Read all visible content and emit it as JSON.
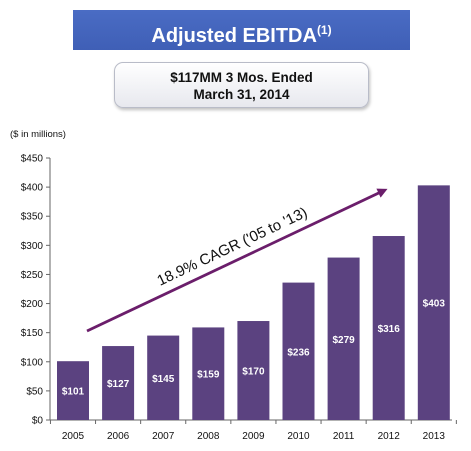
{
  "header": {
    "title": "Adjusted EBITDA",
    "title_footnote": "(1)"
  },
  "callout": {
    "line1": "$117MM 3 Mos. Ended",
    "line2": "March 31, 2014"
  },
  "colors": {
    "bar": "#5b4280",
    "axis": "#666666",
    "arrow": "#6b1e6b",
    "banner": "#4466bb"
  },
  "chart_data": {
    "type": "bar",
    "categories": [
      "2005",
      "2006",
      "2007",
      "2008",
      "2009",
      "2010",
      "2011",
      "2012",
      "2013"
    ],
    "values": [
      101,
      127,
      145,
      159,
      170,
      236,
      279,
      316,
      403
    ],
    "value_labels": [
      "$101",
      "$127",
      "$145",
      "$159",
      "$170",
      "$236",
      "$279",
      "$316",
      "$403"
    ],
    "y_ticks": [
      0,
      50,
      100,
      150,
      200,
      250,
      300,
      350,
      400,
      450
    ],
    "y_tick_labels": [
      "$0",
      "$50",
      "$100",
      "$150",
      "$200",
      "$250",
      "$300",
      "$350",
      "$400",
      "$450"
    ],
    "ylim": [
      0,
      450
    ],
    "unit_label": "($ in millions)",
    "annotation": "18.9% CAGR ('05 to '13)",
    "grid": false,
    "legend": "none"
  }
}
